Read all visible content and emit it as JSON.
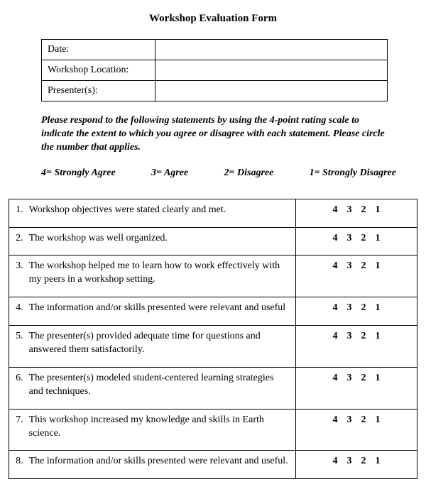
{
  "title": "Workshop Evaluation Form",
  "header": {
    "date_label": "Date:",
    "location_label": "Workshop Location:",
    "presenter_label": "Presenter(s):",
    "date_value": "",
    "location_value": "",
    "presenter_value": ""
  },
  "instructions": "Please respond to the following statements by using the 4-point rating scale to indicate the extent to which you agree or disagree with each statement.  Please circle the number that applies.",
  "legend": {
    "l4": "4= Strongly Agree",
    "l3": "3= Agree",
    "l2": "2= Disagree",
    "l1": "1= Strongly Disagree"
  },
  "rating_options": [
    "4",
    "3",
    "2",
    "1"
  ],
  "questions": [
    {
      "num": "1.",
      "text": "Workshop objectives were stated clearly and met."
    },
    {
      "num": "2.",
      "text": "The workshop was well organized."
    },
    {
      "num": "3.",
      "text": "The workshop helped me to learn how to work effectively with my peers in a workshop setting."
    },
    {
      "num": "4.",
      "text": "The information and/or skills presented were relevant and useful"
    },
    {
      "num": "5.",
      "text": "The presenter(s) provided adequate time for questions and answered them satisfactorily."
    },
    {
      "num": "6.",
      "text": "The presenter(s) modeled student-centered learning strategies and techniques."
    },
    {
      "num": "7.",
      "text": "This workshop increased my knowledge and skills in Earth science."
    },
    {
      "num": "8.",
      "text": "The information and/or skills presented were relevant and useful."
    }
  ]
}
